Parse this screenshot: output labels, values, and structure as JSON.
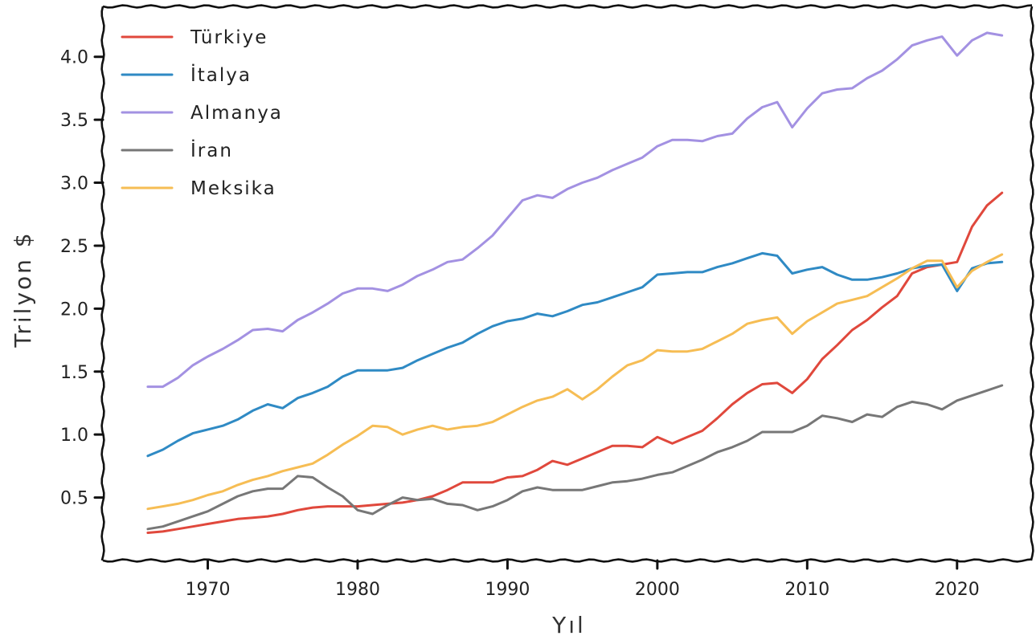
{
  "chart_data": {
    "type": "line",
    "xlabel": "Yıl",
    "ylabel": "Trilyon $",
    "xlim": [
      1963,
      2025
    ],
    "ylim": [
      0.0,
      4.4
    ],
    "xticks": [
      "1970",
      "1980",
      "1990",
      "2000",
      "2010",
      "2020"
    ],
    "yticks": [
      "0.5",
      "1.0",
      "1.5",
      "2.0",
      "2.5",
      "3.0",
      "3.5",
      "4.0"
    ],
    "legend_position": "top-left",
    "grid": false,
    "x": [
      1966,
      1967,
      1968,
      1969,
      1970,
      1971,
      1972,
      1973,
      1974,
      1975,
      1976,
      1977,
      1978,
      1979,
      1980,
      1981,
      1982,
      1983,
      1984,
      1985,
      1986,
      1987,
      1988,
      1989,
      1990,
      1991,
      1992,
      1993,
      1994,
      1995,
      1996,
      1997,
      1998,
      1999,
      2000,
      2001,
      2002,
      2003,
      2004,
      2005,
      2006,
      2007,
      2008,
      2009,
      2010,
      2011,
      2012,
      2013,
      2014,
      2015,
      2016,
      2017,
      2018,
      2019,
      2020,
      2021,
      2022,
      2023
    ],
    "series": [
      {
        "name": "Türkiye",
        "color": "#e0483c",
        "values": [
          0.22,
          0.23,
          0.25,
          0.27,
          0.29,
          0.31,
          0.33,
          0.34,
          0.35,
          0.37,
          0.4,
          0.42,
          0.43,
          0.43,
          0.43,
          0.44,
          0.45,
          0.46,
          0.48,
          0.51,
          0.56,
          0.62,
          0.62,
          0.62,
          0.66,
          0.67,
          0.72,
          0.79,
          0.76,
          0.81,
          0.86,
          0.91,
          0.91,
          0.9,
          0.98,
          0.93,
          0.98,
          1.03,
          1.13,
          1.24,
          1.33,
          1.4,
          1.41,
          1.33,
          1.44,
          1.6,
          1.71,
          1.83,
          1.91,
          2.01,
          2.1,
          2.28,
          2.33,
          2.35,
          2.37,
          2.65,
          2.82,
          2.92
        ]
      },
      {
        "name": "İtalya",
        "color": "#2f8ac4",
        "values": [
          0.83,
          0.88,
          0.95,
          1.01,
          1.04,
          1.07,
          1.12,
          1.19,
          1.24,
          1.21,
          1.29,
          1.33,
          1.38,
          1.46,
          1.51,
          1.51,
          1.51,
          1.53,
          1.59,
          1.64,
          1.69,
          1.73,
          1.8,
          1.86,
          1.9,
          1.92,
          1.96,
          1.94,
          1.98,
          2.03,
          2.05,
          2.09,
          2.13,
          2.17,
          2.27,
          2.28,
          2.29,
          2.29,
          2.33,
          2.36,
          2.4,
          2.44,
          2.42,
          2.28,
          2.31,
          2.33,
          2.27,
          2.23,
          2.23,
          2.25,
          2.28,
          2.32,
          2.34,
          2.35,
          2.14,
          2.32,
          2.36,
          2.37
        ]
      },
      {
        "name": "Almanya",
        "color": "#a391e2",
        "values": [
          1.38,
          1.38,
          1.45,
          1.55,
          1.62,
          1.68,
          1.75,
          1.83,
          1.84,
          1.82,
          1.91,
          1.97,
          2.04,
          2.12,
          2.16,
          2.16,
          2.14,
          2.19,
          2.26,
          2.31,
          2.37,
          2.39,
          2.48,
          2.58,
          2.72,
          2.86,
          2.9,
          2.88,
          2.95,
          3.0,
          3.04,
          3.1,
          3.15,
          3.2,
          3.29,
          3.34,
          3.34,
          3.33,
          3.37,
          3.39,
          3.51,
          3.6,
          3.64,
          3.44,
          3.59,
          3.71,
          3.74,
          3.75,
          3.83,
          3.89,
          3.98,
          4.09,
          4.13,
          4.16,
          4.01,
          4.13,
          4.19,
          4.17
        ]
      },
      {
        "name": "İran",
        "color": "#777777",
        "values": [
          0.25,
          0.27,
          0.31,
          0.35,
          0.39,
          0.45,
          0.51,
          0.55,
          0.57,
          0.57,
          0.67,
          0.66,
          0.58,
          0.51,
          0.4,
          0.37,
          0.44,
          0.5,
          0.48,
          0.49,
          0.45,
          0.44,
          0.4,
          0.43,
          0.48,
          0.55,
          0.58,
          0.56,
          0.56,
          0.56,
          0.59,
          0.62,
          0.63,
          0.65,
          0.68,
          0.7,
          0.75,
          0.8,
          0.86,
          0.9,
          0.95,
          1.02,
          1.02,
          1.02,
          1.07,
          1.15,
          1.13,
          1.1,
          1.16,
          1.14,
          1.22,
          1.26,
          1.24,
          1.2,
          1.27,
          1.31,
          1.35,
          1.39
        ]
      },
      {
        "name": "Meksika",
        "color": "#f6bd54",
        "values": [
          0.41,
          0.43,
          0.45,
          0.48,
          0.52,
          0.55,
          0.6,
          0.64,
          0.67,
          0.71,
          0.74,
          0.77,
          0.84,
          0.92,
          0.99,
          1.07,
          1.06,
          1.0,
          1.04,
          1.07,
          1.04,
          1.06,
          1.07,
          1.1,
          1.16,
          1.22,
          1.27,
          1.3,
          1.36,
          1.28,
          1.36,
          1.46,
          1.55,
          1.59,
          1.67,
          1.66,
          1.66,
          1.68,
          1.74,
          1.8,
          1.88,
          1.91,
          1.93,
          1.8,
          1.9,
          1.97,
          2.04,
          2.07,
          2.1,
          2.17,
          2.24,
          2.32,
          2.38,
          2.38,
          2.17,
          2.3,
          2.37,
          2.43
        ]
      }
    ]
  }
}
